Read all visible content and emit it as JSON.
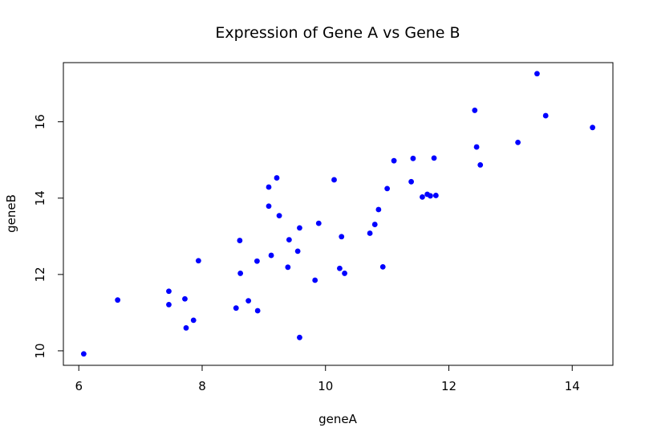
{
  "chart_data": {
    "type": "scatter",
    "title": "Expression of Gene A vs Gene B",
    "xlabel": "geneA",
    "ylabel": "geneB",
    "xlim": [
      5.75,
      14.66
    ],
    "ylim": [
      9.62,
      17.55
    ],
    "x_ticks": [
      6,
      8,
      10,
      12,
      14
    ],
    "y_ticks": [
      10,
      12,
      14,
      16
    ],
    "grid": false,
    "legend": "none",
    "point_color": "#0000ff",
    "points": [
      {
        "x": 6.08,
        "y": 9.92
      },
      {
        "x": 6.63,
        "y": 11.33
      },
      {
        "x": 7.46,
        "y": 11.56
      },
      {
        "x": 7.46,
        "y": 11.21
      },
      {
        "x": 7.72,
        "y": 11.36
      },
      {
        "x": 7.74,
        "y": 10.6
      },
      {
        "x": 7.86,
        "y": 10.8
      },
      {
        "x": 7.94,
        "y": 12.36
      },
      {
        "x": 8.55,
        "y": 11.12
      },
      {
        "x": 8.61,
        "y": 12.89
      },
      {
        "x": 8.62,
        "y": 12.03
      },
      {
        "x": 8.75,
        "y": 11.31
      },
      {
        "x": 8.89,
        "y": 12.35
      },
      {
        "x": 8.9,
        "y": 11.05
      },
      {
        "x": 9.08,
        "y": 14.29
      },
      {
        "x": 9.08,
        "y": 13.79
      },
      {
        "x": 9.12,
        "y": 12.5
      },
      {
        "x": 9.21,
        "y": 14.53
      },
      {
        "x": 9.25,
        "y": 13.54
      },
      {
        "x": 9.39,
        "y": 12.19
      },
      {
        "x": 9.41,
        "y": 12.91
      },
      {
        "x": 9.55,
        "y": 12.61
      },
      {
        "x": 9.58,
        "y": 13.22
      },
      {
        "x": 9.58,
        "y": 10.35
      },
      {
        "x": 9.83,
        "y": 11.85
      },
      {
        "x": 9.89,
        "y": 13.34
      },
      {
        "x": 10.14,
        "y": 14.48
      },
      {
        "x": 10.23,
        "y": 12.16
      },
      {
        "x": 10.26,
        "y": 12.99
      },
      {
        "x": 10.31,
        "y": 12.03
      },
      {
        "x": 10.72,
        "y": 13.08
      },
      {
        "x": 10.8,
        "y": 13.31
      },
      {
        "x": 10.86,
        "y": 13.7
      },
      {
        "x": 10.93,
        "y": 12.2
      },
      {
        "x": 11.0,
        "y": 14.25
      },
      {
        "x": 11.11,
        "y": 14.98
      },
      {
        "x": 11.39,
        "y": 14.43
      },
      {
        "x": 11.42,
        "y": 15.04
      },
      {
        "x": 11.57,
        "y": 14.03
      },
      {
        "x": 11.65,
        "y": 14.1
      },
      {
        "x": 11.7,
        "y": 14.06
      },
      {
        "x": 11.76,
        "y": 15.05
      },
      {
        "x": 11.79,
        "y": 14.07
      },
      {
        "x": 12.42,
        "y": 16.3
      },
      {
        "x": 12.45,
        "y": 15.34
      },
      {
        "x": 12.51,
        "y": 14.87
      },
      {
        "x": 13.12,
        "y": 15.46
      },
      {
        "x": 13.43,
        "y": 17.26
      },
      {
        "x": 13.57,
        "y": 16.16
      },
      {
        "x": 14.33,
        "y": 15.85
      }
    ]
  }
}
